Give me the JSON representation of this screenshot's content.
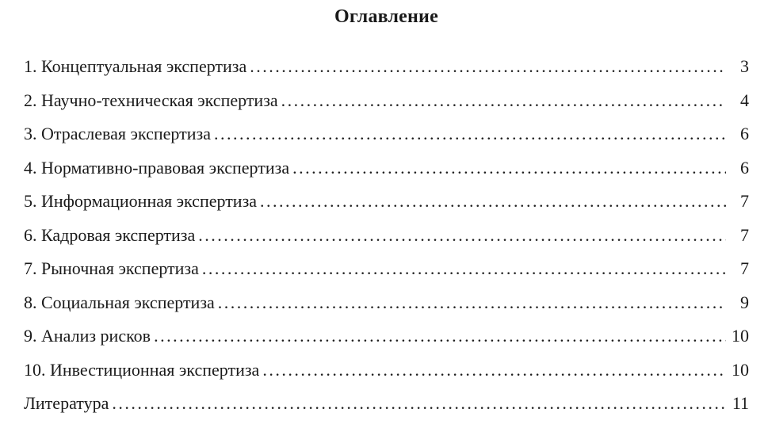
{
  "title": "Оглавление",
  "toc": {
    "entries": [
      {
        "label": "1. Концептуальная экспертиза",
        "page": "3"
      },
      {
        "label": "2. Научно-техническая экспертиза",
        "page": "4"
      },
      {
        "label": "3. Отраслевая экспертиза",
        "page": "6"
      },
      {
        "label": "4. Нормативно-правовая экспертиза",
        "page": "6"
      },
      {
        "label": "5. Информационная экспертиза",
        "page": "7"
      },
      {
        "label": "6. Кадровая экспертиза",
        "page": "7"
      },
      {
        "label": "7. Рыночная экспертиза",
        "page": "7"
      },
      {
        "label": "8. Социальная экспертиза",
        "page": "9"
      },
      {
        "label": "9. Анализ рисков",
        "page": "10"
      },
      {
        "label": "10. Инвестиционная экспертиза",
        "page": "10"
      },
      {
        "label": "Литература",
        "page": "11"
      }
    ]
  }
}
